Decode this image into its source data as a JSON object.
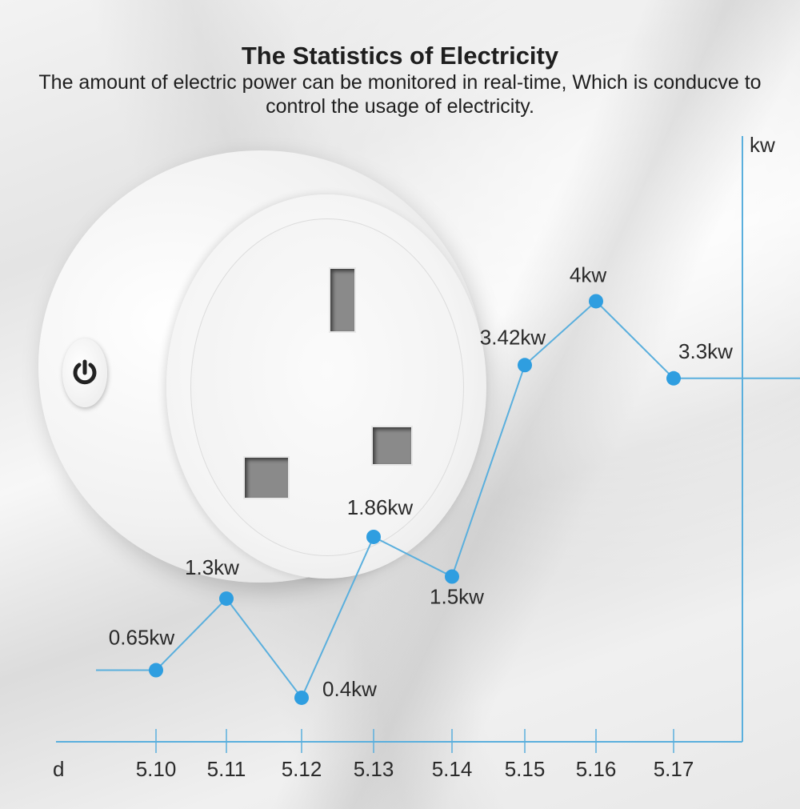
{
  "header": {
    "title": "The Statistics of Electricity",
    "subtitle": "The amount of electric power can be monitored in real-time, Which is conducve to control the usage of electricity."
  },
  "colors": {
    "line": "#5aafdd",
    "point": "#2f9ee0",
    "axis": "#5aafdd"
  },
  "icons": {
    "power": "power-icon"
  },
  "chart_data": {
    "type": "line",
    "title": "The Statistics of Electricity",
    "xlabel": "d",
    "ylabel": "kw",
    "categories": [
      "5.10",
      "5.11",
      "5.12",
      "5.13",
      "5.14",
      "5.15",
      "5.16",
      "5.17"
    ],
    "series": [
      {
        "values": [
          0.65,
          1.3,
          0.4,
          1.86,
          1.5,
          3.42,
          4,
          3.3
        ],
        "labels": [
          "0.65kw",
          "1.3kw",
          "0.4kw",
          "1.86kw",
          "1.5kw",
          "3.42kw",
          "4kw",
          "3.3kw"
        ]
      }
    ],
    "ylim": [
      0,
      5.5
    ],
    "grid": false,
    "legend": "none"
  }
}
